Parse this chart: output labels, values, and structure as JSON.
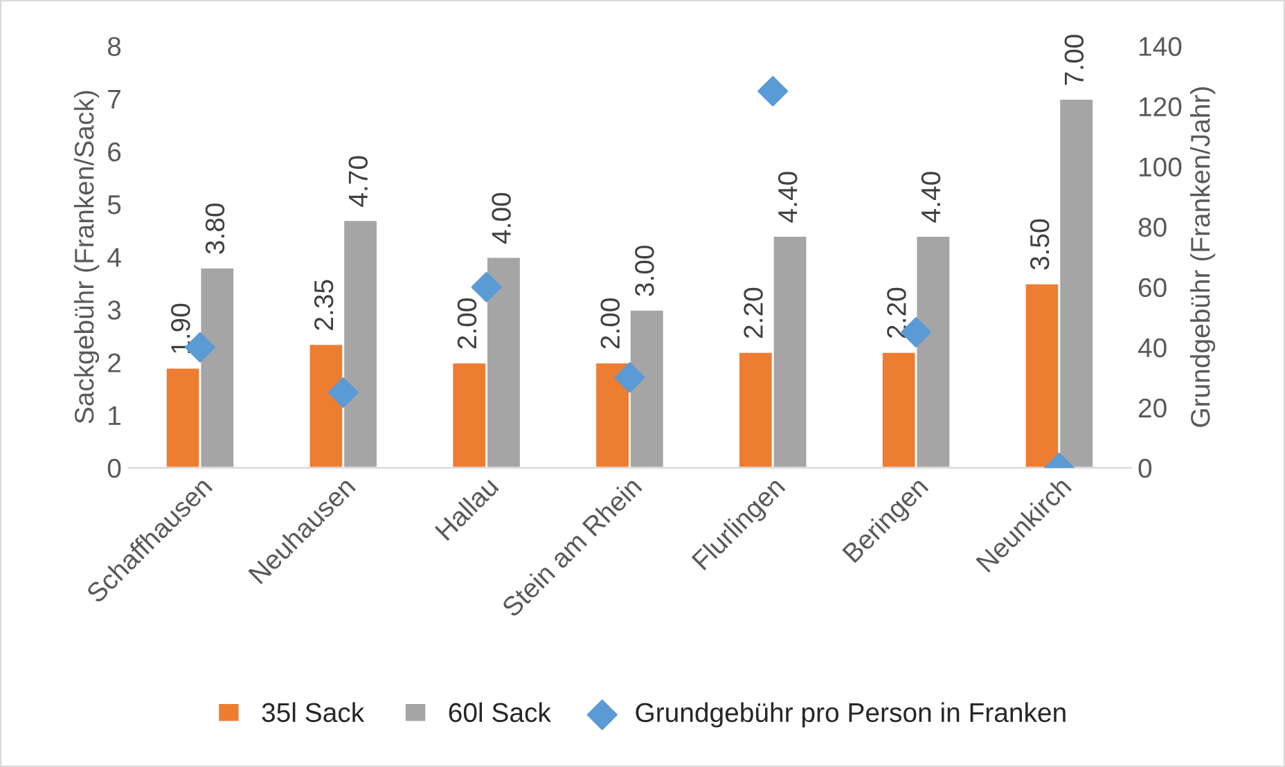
{
  "chart_data": {
    "type": "bar",
    "ylabel": "Sackgebühr (Franken/Sack)",
    "y2label": "Grundgebühr (Franken/Jahr)",
    "categories": [
      "Schaffhausen",
      "Neuhausen",
      "Hallau",
      "Stein am Rhein",
      "Flurlingen",
      "Beringen",
      "Neunkirch"
    ],
    "series": [
      {
        "name": "35l Sack",
        "color": "#ed7d31",
        "values": [
          1.9,
          2.35,
          2.0,
          2.0,
          2.2,
          2.2,
          3.5
        ],
        "value_labels": [
          "1.90",
          "2.35",
          "2.00",
          "2.00",
          "2.20",
          "2.20",
          "3.50"
        ]
      },
      {
        "name": "60l Sack",
        "color": "#a5a5a5",
        "values": [
          3.8,
          4.7,
          4.0,
          3.0,
          4.4,
          4.4,
          7.0
        ],
        "value_labels": [
          "3.80",
          "4.70",
          "4.00",
          "3.00",
          "4.40",
          "4.40",
          "7.00"
        ]
      },
      {
        "name": "Grundgebühr pro Person in Franken",
        "type": "scatter",
        "axis": "y2",
        "marker": "diamond",
        "color": "#5b9bd5",
        "values": [
          40,
          25,
          60,
          30,
          125,
          45,
          0
        ]
      }
    ],
    "ylim": [
      0,
      8
    ],
    "yticks": [
      0,
      1,
      2,
      3,
      4,
      5,
      6,
      7,
      8
    ],
    "y2lim": [
      0,
      140
    ],
    "y2ticks": [
      0,
      20,
      40,
      60,
      80,
      100,
      120,
      140
    ],
    "grid": false,
    "legend": "bottom"
  }
}
